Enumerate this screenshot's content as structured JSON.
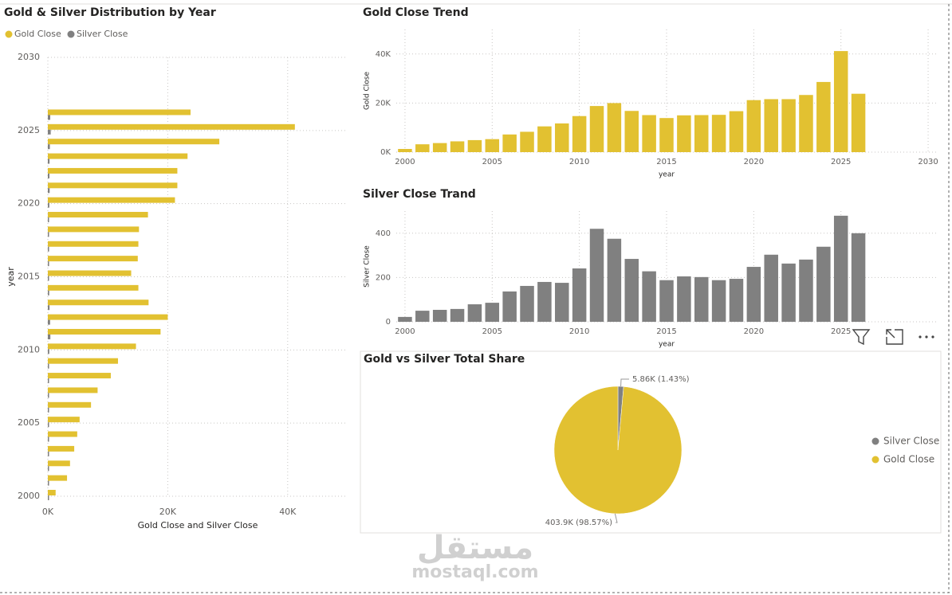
{
  "chart_data": [
    {
      "type": "barh",
      "title": "Gold & Silver Distribution by Year",
      "x_label": "Gold Close and Silver Close",
      "y_label": "year",
      "x": [
        2000,
        2001,
        2002,
        2003,
        2004,
        2005,
        2006,
        2007,
        2008,
        2009,
        2010,
        2011,
        2012,
        2013,
        2014,
        2015,
        2016,
        2017,
        2018,
        2019,
        2020,
        2021,
        2022,
        2023,
        2024,
        2025,
        2026
      ],
      "series": [
        {
          "name": "Gold Close",
          "color": "#e2c131",
          "values": [
            1300,
            3200,
            3700,
            4400,
            4900,
            5300,
            7200,
            8300,
            10500,
            11700,
            14700,
            18800,
            20000,
            16800,
            15100,
            13900,
            15000,
            15100,
            15200,
            16700,
            21200,
            21600,
            21600,
            23300,
            28600,
            41200,
            23800
          ]
        },
        {
          "name": "Silver Close",
          "color": "#808080",
          "values": [
            22,
            50,
            54,
            58,
            79,
            86,
            137,
            162,
            180,
            176,
            241,
            420,
            375,
            284,
            228,
            188,
            205,
            202,
            188,
            194,
            248,
            303,
            263,
            281,
            339,
            479,
            400
          ]
        }
      ],
      "xlim": [
        0,
        50000
      ],
      "xticks": [
        {
          "value": 0,
          "label": "0K"
        },
        {
          "value": 20000,
          "label": "20K"
        },
        {
          "value": 40000,
          "label": "40K"
        }
      ],
      "ylim": [
        2000,
        2030
      ],
      "yticks": [
        2000,
        2005,
        2010,
        2015,
        2020,
        2025,
        2030
      ],
      "grid": true,
      "legend": "top-left"
    },
    {
      "type": "bar",
      "title": "Gold Close Trend",
      "x_label": "year",
      "y_label": "Gold Close",
      "color": "#e2c131",
      "x": [
        2000,
        2001,
        2002,
        2003,
        2004,
        2005,
        2006,
        2007,
        2008,
        2009,
        2010,
        2011,
        2012,
        2013,
        2014,
        2015,
        2016,
        2017,
        2018,
        2019,
        2020,
        2021,
        2022,
        2023,
        2024,
        2025,
        2026
      ],
      "values": [
        1300,
        3200,
        3700,
        4400,
        4900,
        5300,
        7200,
        8300,
        10500,
        11700,
        14700,
        18800,
        20000,
        16800,
        15100,
        13900,
        15000,
        15100,
        15200,
        16700,
        21200,
        21600,
        21600,
        23300,
        28600,
        41200,
        23800
      ],
      "xlim": [
        1999.5,
        2030.5
      ],
      "xticks": [
        2000,
        2005,
        2010,
        2015,
        2020,
        2025,
        2030
      ],
      "ylim": [
        0,
        50000
      ],
      "yticks": [
        {
          "value": 0,
          "label": "0K"
        },
        {
          "value": 20000,
          "label": "20K"
        },
        {
          "value": 40000,
          "label": "40K"
        }
      ],
      "grid": true
    },
    {
      "type": "bar",
      "title": "Silver Close Trand",
      "x_label": "year",
      "y_label": "Silver Close",
      "color": "#808080",
      "x": [
        2000,
        2001,
        2002,
        2003,
        2004,
        2005,
        2006,
        2007,
        2008,
        2009,
        2010,
        2011,
        2012,
        2013,
        2014,
        2015,
        2016,
        2017,
        2018,
        2019,
        2020,
        2021,
        2022,
        2023,
        2024,
        2025,
        2026
      ],
      "values": [
        22,
        50,
        54,
        58,
        79,
        86,
        137,
        162,
        180,
        176,
        241,
        420,
        375,
        284,
        228,
        188,
        205,
        202,
        188,
        194,
        248,
        303,
        263,
        281,
        339,
        479,
        400
      ],
      "xlim": [
        1999.5,
        2030.5
      ],
      "xticks": [
        2000,
        2005,
        2010,
        2015,
        2020,
        2025
      ],
      "ylim": [
        0,
        500
      ],
      "yticks": [
        0,
        200,
        400
      ],
      "grid": true
    },
    {
      "type": "pie",
      "title": "Gold vs Silver Total Share",
      "categories": [
        "Silver Close",
        "Gold Close"
      ],
      "values": [
        5860,
        403900
      ],
      "value_labels": [
        "5.86K (1.43%)",
        "403.9K (98.57%)"
      ],
      "colors": [
        "#808080",
        "#e2c131"
      ],
      "legend": "right"
    }
  ],
  "watermark": {
    "arabic": "مستقل",
    "latin": "mostaql.com"
  }
}
